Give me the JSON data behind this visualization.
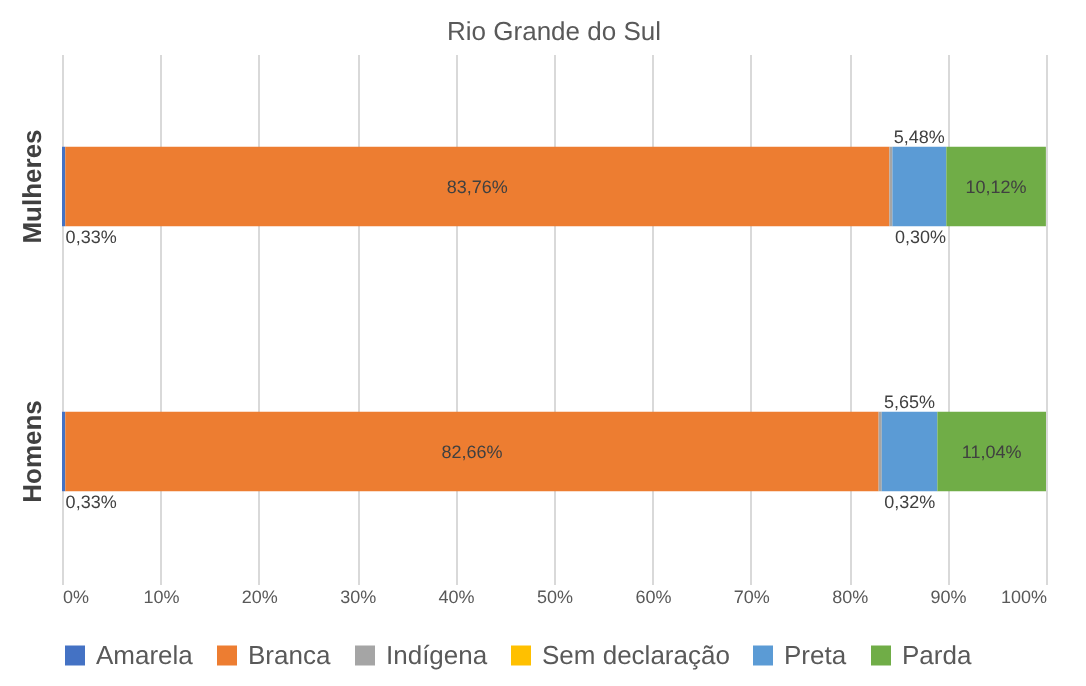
{
  "chart_data": {
    "type": "bar",
    "orientation": "horizontal",
    "stacked": true,
    "title": "Rio Grande do Sul",
    "categories": [
      "Mulheres",
      "Homens"
    ],
    "series": [
      {
        "name": "Amarela",
        "color": "#4472c4",
        "values": [
          0.33,
          0.33
        ],
        "value_labels": [
          "0,33%",
          "0,33%"
        ]
      },
      {
        "name": "Branca",
        "color": "#ed7d31",
        "values": [
          83.76,
          82.66
        ],
        "value_labels": [
          "83,76%",
          "82,66%"
        ]
      },
      {
        "name": "Indígena",
        "color": "#a5a5a5",
        "values": [
          0.3,
          0.32
        ],
        "value_labels": [
          "0,30%",
          "0,32%"
        ]
      },
      {
        "name": "Sem declaração",
        "color": "#ffc000",
        "values": [
          null,
          null
        ]
      },
      {
        "name": "Preta",
        "color": "#5b9bd5",
        "values": [
          5.48,
          5.65
        ],
        "value_labels": [
          "5,48%",
          "5,65%"
        ]
      },
      {
        "name": "Parda",
        "color": "#70ad47",
        "values": [
          10.12,
          11.04
        ],
        "value_labels": [
          "10,12%",
          "11,04%"
        ]
      }
    ],
    "xlim": [
      0,
      100
    ],
    "xticks": [
      {
        "value": 0,
        "label": "0%"
      },
      {
        "value": 10,
        "label": "10%"
      },
      {
        "value": 20,
        "label": "20%"
      },
      {
        "value": 30,
        "label": "30%"
      },
      {
        "value": 40,
        "label": "40%"
      },
      {
        "value": 50,
        "label": "50%"
      },
      {
        "value": 60,
        "label": "60%"
      },
      {
        "value": 70,
        "label": "70%"
      },
      {
        "value": 80,
        "label": "80%"
      },
      {
        "value": 90,
        "label": "90%"
      },
      {
        "value": 100,
        "label": "100%"
      }
    ],
    "grid": "x",
    "legend": "bottom"
  }
}
